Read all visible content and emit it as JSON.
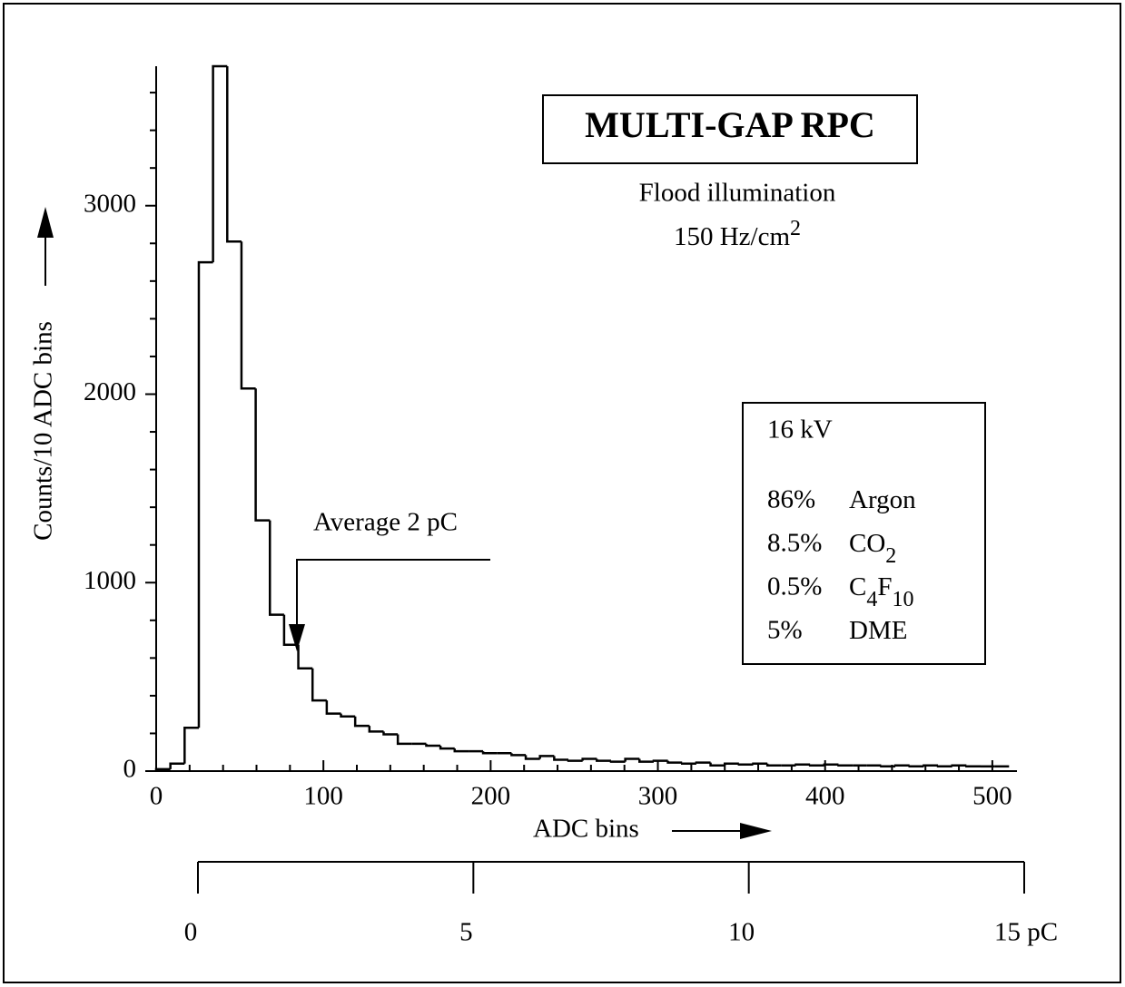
{
  "chart_data": {
    "type": "histogram",
    "title": "MULTI-GAP RPC",
    "subtitle": "Flood illumination",
    "rate": {
      "text": "150 Hz/cm",
      "sup": "2"
    },
    "annotation": "Average 2 pC",
    "xlabel": "ADC bins",
    "ylabel": "Counts/10 ADC bins",
    "conditions": {
      "voltage": "16 kV",
      "gases": [
        {
          "fraction": "86%",
          "name": [
            {
              "text": "Argon"
            }
          ]
        },
        {
          "fraction": "8.5%",
          "name": [
            {
              "text": "CO"
            },
            {
              "text": "2",
              "sub": true
            }
          ]
        },
        {
          "fraction": "0.5%",
          "name": [
            {
              "text": "C"
            },
            {
              "text": "4",
              "sub": true
            },
            {
              "text": "F"
            },
            {
              "text": "10",
              "sub": true
            }
          ]
        },
        {
          "fraction": "5%",
          "name": [
            {
              "text": "DME"
            }
          ]
        }
      ]
    },
    "bins": [
      0,
      8.5,
      17,
      25.5,
      34,
      42.5,
      51,
      59.5,
      68,
      76.5,
      85,
      93.5,
      102,
      110.5,
      119,
      127.5,
      136,
      144.5,
      153,
      161.5,
      170,
      178.5,
      187,
      195.5,
      204,
      212.5,
      221,
      229.5,
      238,
      246.5,
      255,
      263.5,
      272,
      280.5,
      289,
      297.5,
      306,
      314.5,
      323,
      331.5,
      340,
      348.5,
      357,
      365.5,
      374,
      382.5,
      391,
      399.5,
      408,
      416.5,
      425,
      433.5,
      442,
      450.5,
      459,
      467.5,
      476,
      484.5,
      493,
      501.5,
      510
    ],
    "values": [
      10,
      40,
      230,
      2700,
      3740,
      2810,
      2030,
      1330,
      830,
      670,
      545,
      375,
      305,
      290,
      240,
      210,
      195,
      145,
      145,
      135,
      120,
      105,
      105,
      95,
      95,
      85,
      65,
      80,
      60,
      55,
      65,
      55,
      50,
      65,
      50,
      55,
      45,
      40,
      45,
      30,
      40,
      35,
      40,
      30,
      30,
      35,
      30,
      35,
      30,
      30,
      30,
      25,
      30,
      25,
      30,
      25,
      30,
      25,
      25,
      25
    ],
    "color": "#000000",
    "xlim": [
      0,
      512
    ],
    "xticks": [
      0,
      100,
      200,
      300,
      400,
      500
    ],
    "xminorticks": [
      20,
      40,
      60,
      80,
      120,
      140,
      160,
      180,
      220,
      240,
      260,
      280,
      320,
      340,
      360,
      380,
      420,
      440,
      460,
      480
    ],
    "ylim": [
      0,
      3740
    ],
    "yticks": [
      0,
      1000,
      2000,
      3000
    ],
    "yminorticks": [
      200,
      400,
      600,
      800,
      1200,
      1400,
      1600,
      1800,
      2200,
      2400,
      2600,
      2800,
      3200,
      3400,
      3600
    ],
    "x2lim": [
      0,
      15
    ],
    "x2ticks": [
      0,
      5,
      10,
      {
        "value": 15,
        "label": "15 pC"
      }
    ],
    "grid": false
  }
}
